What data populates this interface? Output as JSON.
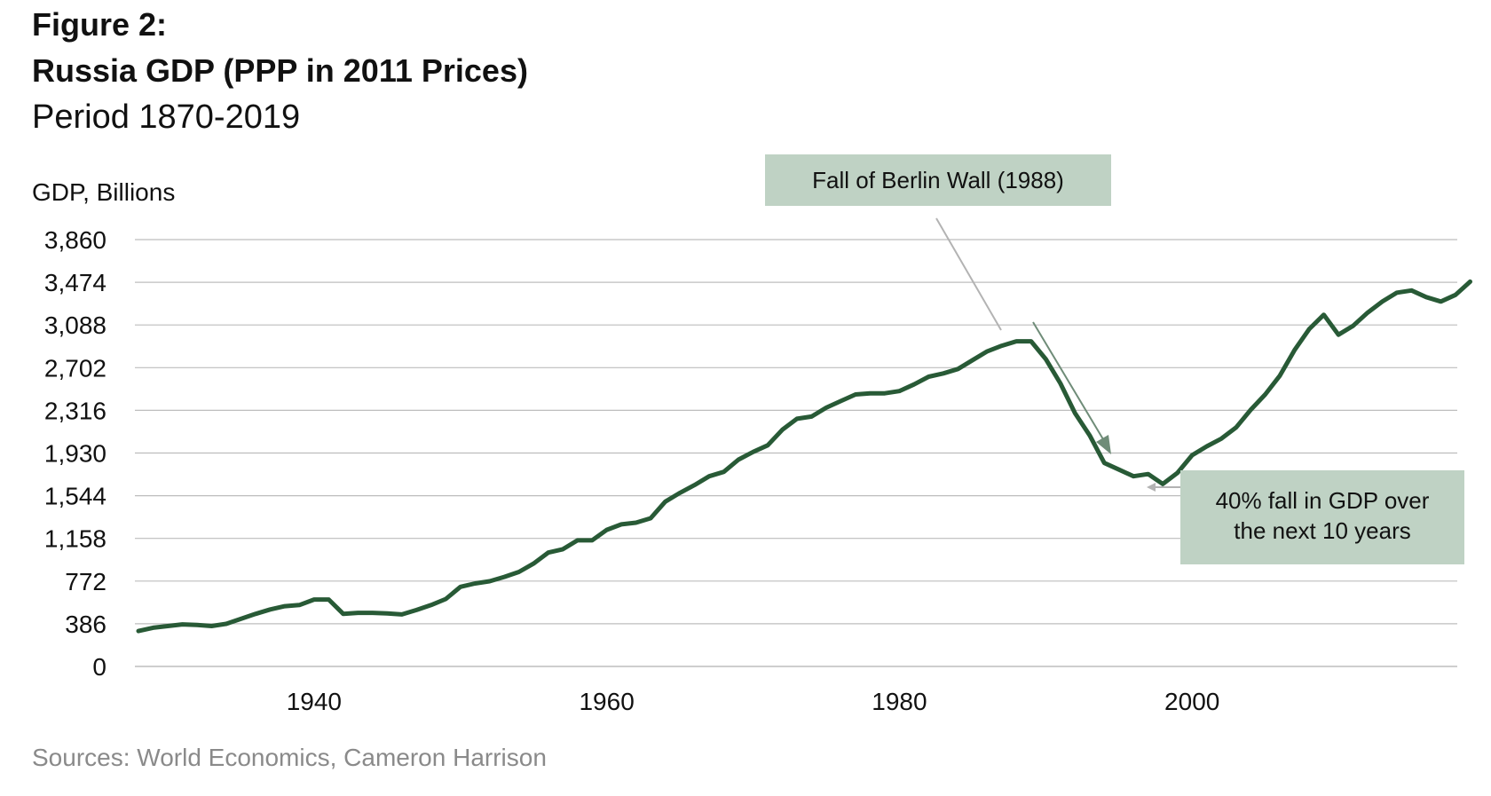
{
  "header": {
    "figure_label": "Figure 2:",
    "title": "Russia GDP (PPP in 2011 Prices)",
    "subtitle": "Period 1870-2019"
  },
  "footer": {
    "source": "Sources: World Economics, Cameron Harrison"
  },
  "colors": {
    "line": "#285a36",
    "grid": "#bdbdbd",
    "annotation_box": "#bfd2c4",
    "annotation_arrow": "#6f8c78",
    "connector": "#b3b3b3"
  },
  "chart_data": {
    "type": "line",
    "title": "Russia GDP (PPP in 2011 Prices)",
    "subtitle": "Period 1870-2019",
    "ylabel": "GDP, Billions",
    "xlabel": "",
    "xlim": [
      1928,
      2018
    ],
    "ylim": [
      0,
      3860
    ],
    "yticks": [
      0,
      386,
      772,
      1158,
      1544,
      1930,
      2316,
      2702,
      3088,
      3474,
      3860
    ],
    "ytick_labels": [
      "0",
      "386",
      "772",
      "1,158",
      "1,544",
      "1,930",
      "2,316",
      "2,702",
      "3,088",
      "3,474",
      "3,860"
    ],
    "xticks": [
      1940,
      1960,
      1980,
      2000
    ],
    "xtick_labels": [
      "1940",
      "1960",
      "1980",
      "2000"
    ],
    "grid": true,
    "legend": "none",
    "series": [
      {
        "points": [
          [
            1928,
            320
          ],
          [
            1929,
            350
          ],
          [
            1930,
            365
          ],
          [
            1931,
            380
          ],
          [
            1932,
            375
          ],
          [
            1933,
            365
          ],
          [
            1934,
            385
          ],
          [
            1935,
            430
          ],
          [
            1936,
            475
          ],
          [
            1937,
            515
          ],
          [
            1938,
            545
          ],
          [
            1939,
            555
          ],
          [
            1940,
            605
          ],
          [
            1941,
            605
          ],
          [
            1942,
            475
          ],
          [
            1943,
            485
          ],
          [
            1944,
            485
          ],
          [
            1945,
            480
          ],
          [
            1946,
            470
          ],
          [
            1947,
            510
          ],
          [
            1948,
            555
          ],
          [
            1949,
            610
          ],
          [
            1950,
            720
          ],
          [
            1951,
            750
          ],
          [
            1952,
            770
          ],
          [
            1953,
            810
          ],
          [
            1954,
            855
          ],
          [
            1955,
            930
          ],
          [
            1956,
            1030
          ],
          [
            1957,
            1060
          ],
          [
            1958,
            1140
          ],
          [
            1959,
            1140
          ],
          [
            1960,
            1235
          ],
          [
            1961,
            1285
          ],
          [
            1962,
            1300
          ],
          [
            1963,
            1340
          ],
          [
            1964,
            1490
          ],
          [
            1965,
            1570
          ],
          [
            1966,
            1640
          ],
          [
            1967,
            1720
          ],
          [
            1968,
            1760
          ],
          [
            1969,
            1870
          ],
          [
            1970,
            1940
          ],
          [
            1971,
            2000
          ],
          [
            1972,
            2140
          ],
          [
            1973,
            2240
          ],
          [
            1974,
            2260
          ],
          [
            1975,
            2340
          ],
          [
            1976,
            2400
          ],
          [
            1977,
            2460
          ],
          [
            1978,
            2470
          ],
          [
            1979,
            2470
          ],
          [
            1980,
            2490
          ],
          [
            1981,
            2550
          ],
          [
            1982,
            2620
          ],
          [
            1983,
            2650
          ],
          [
            1984,
            2690
          ],
          [
            1985,
            2770
          ],
          [
            1986,
            2850
          ],
          [
            1987,
            2900
          ],
          [
            1988,
            2940
          ],
          [
            1989,
            2940
          ],
          [
            1990,
            2780
          ],
          [
            1991,
            2560
          ],
          [
            1992,
            2290
          ],
          [
            1993,
            2090
          ],
          [
            1994,
            1840
          ],
          [
            1995,
            1780
          ],
          [
            1996,
            1720
          ],
          [
            1997,
            1740
          ],
          [
            1998,
            1650
          ],
          [
            1999,
            1750
          ],
          [
            2000,
            1910
          ],
          [
            2001,
            1990
          ],
          [
            2002,
            2060
          ],
          [
            2003,
            2160
          ],
          [
            2004,
            2320
          ],
          [
            2005,
            2460
          ],
          [
            2006,
            2630
          ],
          [
            2007,
            2860
          ],
          [
            2008,
            3050
          ],
          [
            2009,
            3180
          ],
          [
            2010,
            3000
          ],
          [
            2011,
            3080
          ],
          [
            2012,
            3200
          ],
          [
            2013,
            3300
          ],
          [
            2014,
            3380
          ],
          [
            2015,
            3400
          ],
          [
            2016,
            3340
          ],
          [
            2017,
            3300
          ],
          [
            2018,
            3360
          ],
          [
            2019,
            3480
          ]
        ]
      }
    ],
    "annotations": [
      {
        "id": "berlin",
        "text_lines": [
          "Fall of Berlin Wall (1988)"
        ],
        "x": 1988,
        "y": 2940
      },
      {
        "id": "fall",
        "text_lines": [
          "40% fall in GDP over",
          "the next 10 years"
        ],
        "x": 1998,
        "y": 1650
      }
    ]
  }
}
